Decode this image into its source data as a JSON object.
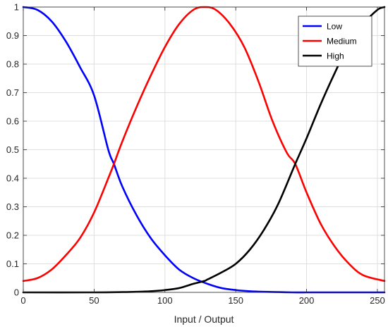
{
  "chart_data": {
    "type": "line",
    "title": "",
    "xlabel": "Input / Output",
    "ylabel": "",
    "xlim": [
      0,
      255
    ],
    "ylim": [
      0,
      1
    ],
    "xticks": [
      0,
      50,
      100,
      150,
      200,
      250
    ],
    "yticks": [
      0,
      0.1,
      0.2,
      0.3,
      0.4,
      0.5,
      0.6,
      0.7,
      0.8,
      0.9,
      1
    ],
    "xtick_labels": [
      "0",
      "50",
      "100",
      "150",
      "200",
      "250"
    ],
    "ytick_labels": [
      "0",
      "0.1",
      "0.2",
      "0.3",
      "0.4",
      "0.5",
      "0.6",
      "0.7",
      "0.8",
      "0.9",
      "1"
    ],
    "grid": true,
    "legend": {
      "placement": "top-right"
    },
    "series": [
      {
        "name": "Low",
        "color": "#0000ff",
        "x": [
          0,
          10,
          20,
          30,
          40,
          50,
          60,
          64,
          70,
          80,
          90,
          100,
          110,
          120,
          130,
          140,
          150,
          160,
          170,
          180,
          190,
          200,
          210,
          220,
          230,
          240,
          255
        ],
        "y": [
          1,
          0.99,
          0.95,
          0.88,
          0.79,
          0.69,
          0.5,
          0.45,
          0.37,
          0.27,
          0.19,
          0.13,
          0.08,
          0.05,
          0.03,
          0.015,
          0.008,
          0.004,
          0.002,
          0.001,
          0,
          0,
          0,
          0,
          0,
          0,
          0
        ]
      },
      {
        "name": "Medium",
        "color": "#ff0000",
        "x": [
          0,
          10,
          20,
          30,
          40,
          50,
          60,
          64,
          70,
          80,
          90,
          100,
          110,
          120,
          128,
          136,
          146,
          156,
          166,
          176,
          186,
          192,
          200,
          210,
          220,
          230,
          240,
          255
        ],
        "y": [
          0.04,
          0.05,
          0.08,
          0.13,
          0.19,
          0.28,
          0.4,
          0.45,
          0.53,
          0.65,
          0.76,
          0.86,
          0.94,
          0.99,
          1,
          0.99,
          0.94,
          0.86,
          0.74,
          0.6,
          0.49,
          0.45,
          0.35,
          0.24,
          0.16,
          0.1,
          0.06,
          0.04
        ]
      },
      {
        "name": "High",
        "color": "#000000",
        "x": [
          0,
          50,
          70,
          80,
          90,
          100,
          110,
          120,
          128,
          130,
          140,
          150,
          160,
          170,
          180,
          192,
          200,
          210,
          220,
          230,
          240,
          250,
          255
        ],
        "y": [
          0,
          0,
          0.001,
          0.002,
          0.004,
          0.008,
          0.015,
          0.03,
          0.04,
          0.045,
          0.07,
          0.1,
          0.15,
          0.22,
          0.31,
          0.45,
          0.54,
          0.66,
          0.77,
          0.87,
          0.94,
          0.99,
          1
        ]
      }
    ]
  }
}
